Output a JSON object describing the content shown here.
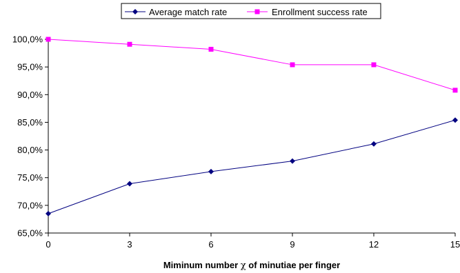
{
  "chart_data": {
    "type": "line",
    "x": [
      0,
      3,
      6,
      9,
      12,
      15
    ],
    "series": [
      {
        "name": "Average match rate",
        "values": [
          68.5,
          73.9,
          76.1,
          78.0,
          81.1,
          85.4
        ],
        "color": "#000080",
        "marker": "diamond"
      },
      {
        "name": "Enrollment success rate",
        "values": [
          100.0,
          99.1,
          98.2,
          95.4,
          95.4,
          90.8
        ],
        "color": "#ff00ff",
        "marker": "square"
      }
    ],
    "x_tick_labels": [
      "0",
      "3",
      "6",
      "9",
      "12",
      "15"
    ],
    "y_tick_labels": [
      "65,0%",
      "70,0%",
      "75,0%",
      "80,0%",
      "85,0%",
      "90,0%",
      "95,0%",
      "100,0%"
    ],
    "xlabel_prefix": "Miminum number ",
    "xlabel_symbol": "χ",
    "xlabel_suffix": " of minutiae per finger",
    "ylabel": "",
    "title": "",
    "xlim": [
      0,
      15
    ],
    "ylim": [
      65,
      100
    ],
    "y_step": 5,
    "grid": false,
    "legend_position": "top-center"
  }
}
